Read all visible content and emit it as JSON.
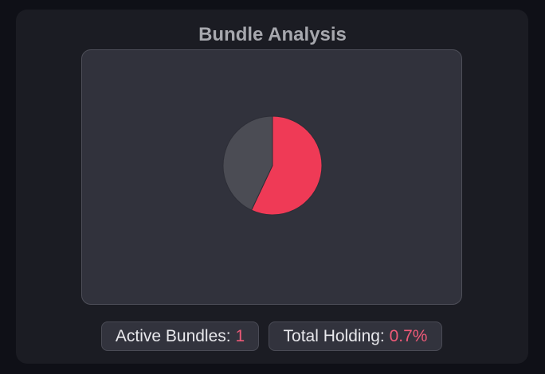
{
  "page": {
    "title": "Bundle Analysis"
  },
  "chart_data": {
    "type": "pie",
    "values": [
      57,
      43
    ],
    "colors": [
      "#ef3a56",
      "#4b4c54"
    ],
    "start_angle_deg": 0,
    "stroke": "#2d2e37"
  },
  "stats": {
    "active_bundles_label": "Active Bundles:",
    "active_bundles_value": "1",
    "total_holding_label": "Total Holding:",
    "total_holding_value": "0.7%"
  }
}
